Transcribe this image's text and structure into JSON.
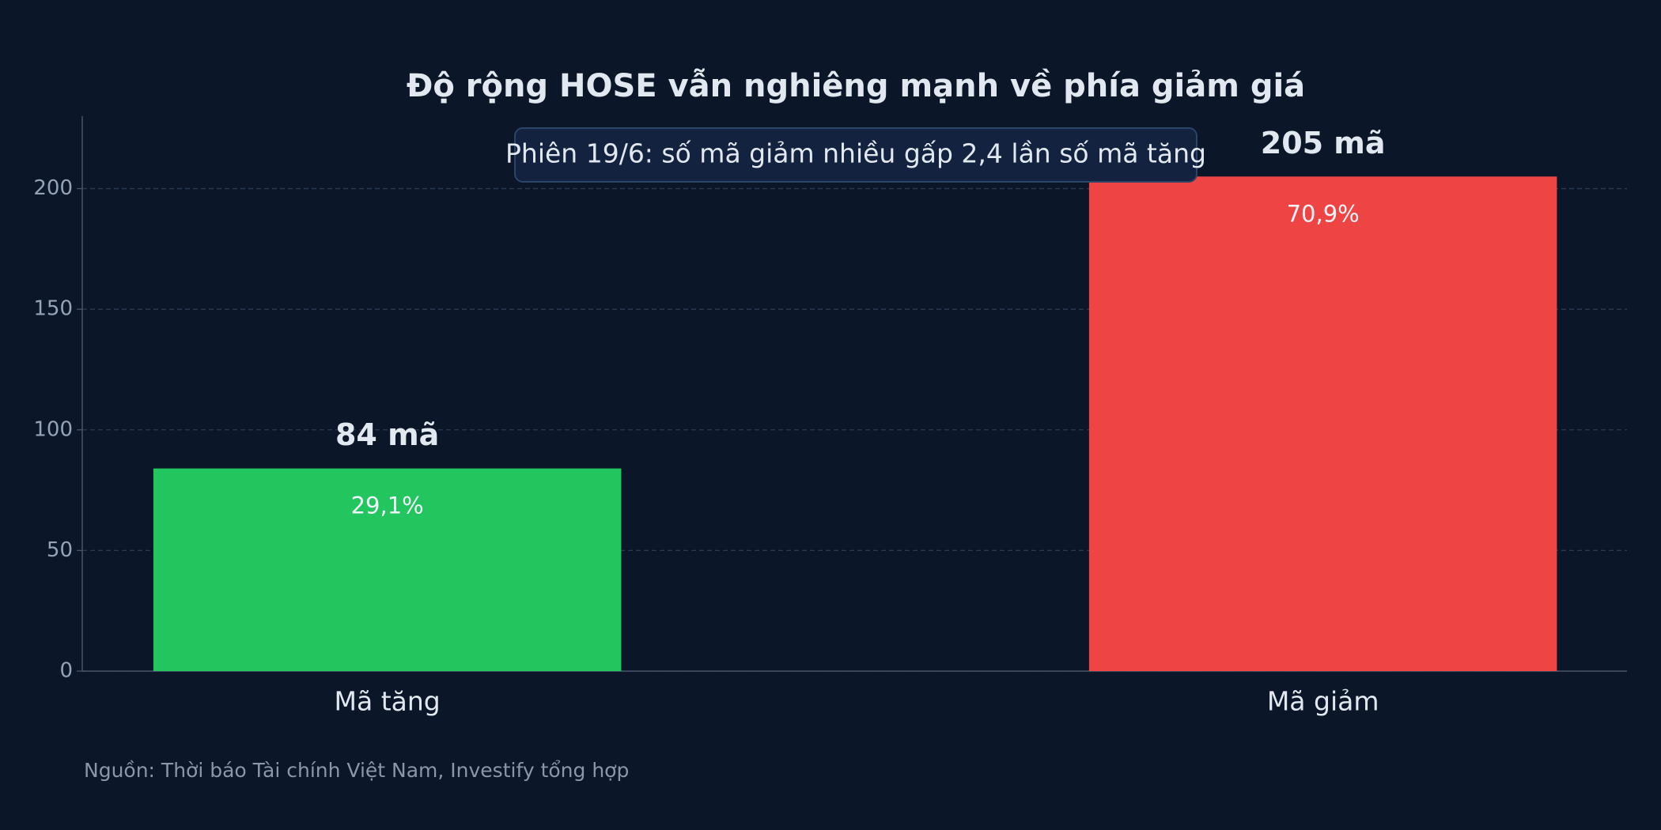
{
  "chart_data": {
    "type": "bar",
    "title": "Độ rộng HOSE vẫn nghiêng mạnh về phía giảm giá",
    "annotation": "Phiên 19/6: số mã giảm nhiều gấp 2,4 lần số mã tăng",
    "source": "Nguồn: Thời báo Tài chính Việt Nam, Investify tổng hợp",
    "categories": [
      "Mã tăng",
      "Mã giảm"
    ],
    "values": [
      84,
      205
    ],
    "value_labels": [
      "84 mã",
      "205 mã"
    ],
    "shares": [
      29.1,
      70.9
    ],
    "share_labels": [
      "29,1%",
      "70,9%"
    ],
    "colors": [
      "#22c55e",
      "#ef4444"
    ],
    "ylim": [
      0,
      230
    ],
    "yticks": [
      0,
      50,
      100,
      150,
      200
    ],
    "grid": true
  }
}
